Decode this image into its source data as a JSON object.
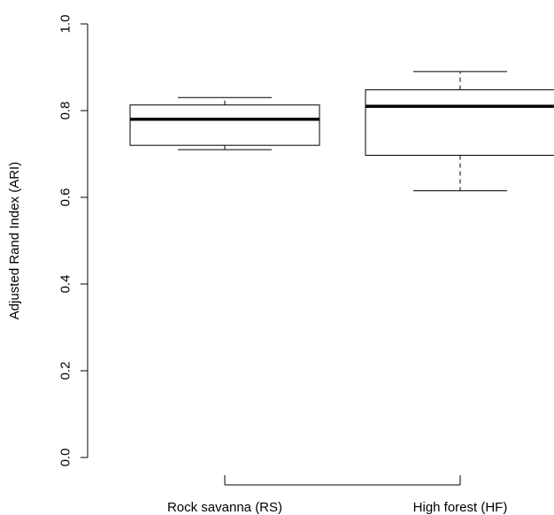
{
  "chart_data": {
    "type": "boxplot",
    "title": "",
    "xlabel": "",
    "ylabel": "Adjusted Rand Index (ARI)",
    "ylim": [
      0,
      1
    ],
    "yticks": [
      "0.0",
      "0.2",
      "0.4",
      "0.6",
      "0.8",
      "1.0"
    ],
    "categories": [
      "Rock savanna (RS)",
      "High forest (HF)"
    ],
    "boxes": [
      {
        "category": "Rock savanna (RS)",
        "min": 0.71,
        "q1": 0.72,
        "median": 0.78,
        "q3": 0.813,
        "max": 0.83
      },
      {
        "category": "High forest (HF)",
        "min": 0.615,
        "q1": 0.697,
        "median": 0.81,
        "q3": 0.848,
        "max": 0.89
      }
    ],
    "grid": false,
    "legend": "none"
  }
}
